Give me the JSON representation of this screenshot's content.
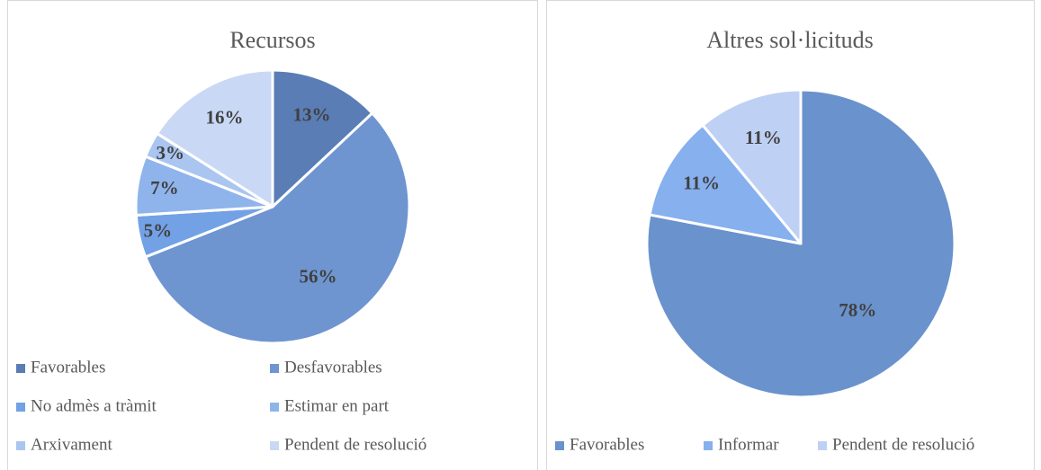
{
  "chart_data": [
    {
      "type": "pie",
      "title": "Recursos",
      "categories": [
        "Favorables",
        "Desfavorables",
        "No admès a tràmit",
        "Estimar en part",
        "Arxivament",
        "Pendent de resolució"
      ],
      "values": [
        13,
        56,
        5,
        7,
        3,
        16
      ],
      "value_labels": [
        "13%",
        "56%",
        "5%",
        "7%",
        "3%",
        "16%"
      ],
      "colors": [
        "#5a7db5",
        "#6e95d0",
        "#72a1e6",
        "#8fb4ec",
        "#aac5f0",
        "#c9d8f5"
      ],
      "legend": "bottom"
    },
    {
      "type": "pie",
      "title": "Altres sol·licituds",
      "categories": [
        "Favorables",
        "Informar",
        "Pendent de resolució"
      ],
      "values": [
        78,
        11,
        11
      ],
      "value_labels": [
        "78%",
        "11%",
        "11%"
      ],
      "colors": [
        "#6a92cd",
        "#86b0ee",
        "#bfd0f5"
      ],
      "legend": "bottom"
    }
  ]
}
